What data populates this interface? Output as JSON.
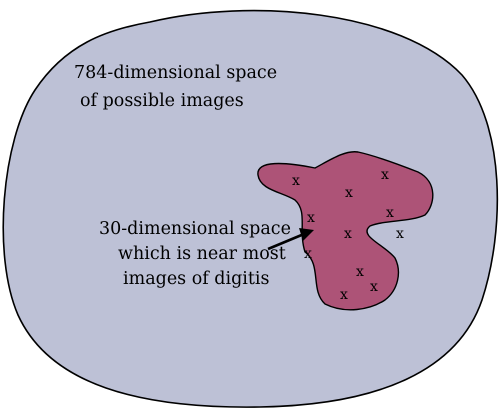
{
  "outer_label": {
    "line1": "784-dimensional space",
    "line2": "of possible images"
  },
  "inner_label": {
    "line1": "30-dimensional space",
    "line2": "which is near most",
    "line3": "images of digitis"
  },
  "marker_glyph": "x",
  "colors": {
    "outer_region": "#bdc1d6",
    "inner_region": "#ad5377",
    "outline": "#000000"
  }
}
